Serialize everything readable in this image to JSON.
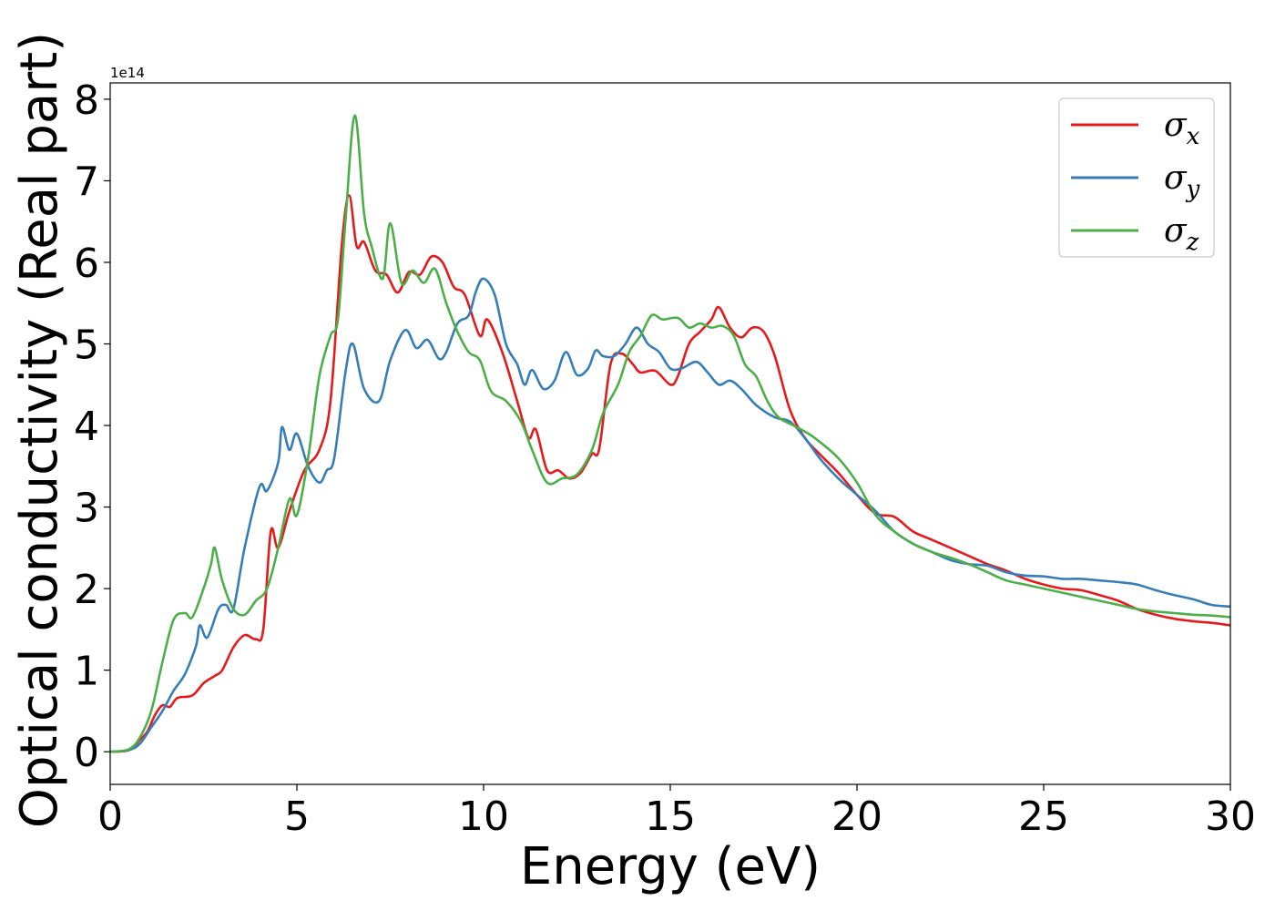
{
  "chart_data": {
    "type": "line",
    "xlabel": "Energy (eV)",
    "ylabel": "Optical conductivity (Real part)",
    "y_scale_label": "1e14",
    "y_scale": 100000000000000.0,
    "xlim": [
      0,
      30
    ],
    "ylim": [
      -0.4,
      8.2
    ],
    "x_ticks": [
      0,
      5,
      10,
      15,
      20,
      25,
      30
    ],
    "y_ticks": [
      0,
      1,
      2,
      3,
      4,
      5,
      6,
      7,
      8
    ],
    "grid": false,
    "legend_position": "top-right",
    "series": [
      {
        "name": "σ_x",
        "label_base": "σ",
        "label_sub": "x",
        "color": "#e41a1c",
        "points": [
          [
            0,
            0
          ],
          [
            0.5,
            0.02
          ],
          [
            0.8,
            0.15
          ],
          [
            1.0,
            0.25
          ],
          [
            1.2,
            0.45
          ],
          [
            1.4,
            0.57
          ],
          [
            1.6,
            0.55
          ],
          [
            1.8,
            0.66
          ],
          [
            2.2,
            0.69
          ],
          [
            2.5,
            0.84
          ],
          [
            2.8,
            0.93
          ],
          [
            3.0,
            1.0
          ],
          [
            3.3,
            1.28
          ],
          [
            3.6,
            1.43
          ],
          [
            3.9,
            1.38
          ],
          [
            4.1,
            1.5
          ],
          [
            4.3,
            2.7
          ],
          [
            4.5,
            2.5
          ],
          [
            4.8,
            2.95
          ],
          [
            5.2,
            3.45
          ],
          [
            5.6,
            3.7
          ],
          [
            5.9,
            4.3
          ],
          [
            6.2,
            6.2
          ],
          [
            6.4,
            6.82
          ],
          [
            6.6,
            6.2
          ],
          [
            6.8,
            6.25
          ],
          [
            7.1,
            5.9
          ],
          [
            7.4,
            5.85
          ],
          [
            7.7,
            5.63
          ],
          [
            8.0,
            5.88
          ],
          [
            8.3,
            5.85
          ],
          [
            8.6,
            6.07
          ],
          [
            8.9,
            6.0
          ],
          [
            9.2,
            5.7
          ],
          [
            9.5,
            5.6
          ],
          [
            9.9,
            5.1
          ],
          [
            10.1,
            5.3
          ],
          [
            10.5,
            4.9
          ],
          [
            10.9,
            4.3
          ],
          [
            11.2,
            3.85
          ],
          [
            11.4,
            3.95
          ],
          [
            11.7,
            3.45
          ],
          [
            12.0,
            3.45
          ],
          [
            12.3,
            3.35
          ],
          [
            12.6,
            3.42
          ],
          [
            12.9,
            3.65
          ],
          [
            13.1,
            3.72
          ],
          [
            13.4,
            4.75
          ],
          [
            13.7,
            4.88
          ],
          [
            14.0,
            4.75
          ],
          [
            14.2,
            4.65
          ],
          [
            14.6,
            4.67
          ],
          [
            15.0,
            4.5
          ],
          [
            15.2,
            4.6
          ],
          [
            15.5,
            5.0
          ],
          [
            15.8,
            5.15
          ],
          [
            16.1,
            5.3
          ],
          [
            16.3,
            5.45
          ],
          [
            16.6,
            5.2
          ],
          [
            16.9,
            5.08
          ],
          [
            17.2,
            5.2
          ],
          [
            17.5,
            5.15
          ],
          [
            17.8,
            4.85
          ],
          [
            18.2,
            4.2
          ],
          [
            18.6,
            3.85
          ],
          [
            19.0,
            3.65
          ],
          [
            19.5,
            3.42
          ],
          [
            20.0,
            3.15
          ],
          [
            20.5,
            2.92
          ],
          [
            21.0,
            2.88
          ],
          [
            21.5,
            2.7
          ],
          [
            22.0,
            2.6
          ],
          [
            22.5,
            2.5
          ],
          [
            23.0,
            2.4
          ],
          [
            23.5,
            2.3
          ],
          [
            24.0,
            2.22
          ],
          [
            24.5,
            2.12
          ],
          [
            25.0,
            2.05
          ],
          [
            25.5,
            2.0
          ],
          [
            26.0,
            1.98
          ],
          [
            26.5,
            1.92
          ],
          [
            27.0,
            1.85
          ],
          [
            27.5,
            1.75
          ],
          [
            28.0,
            1.68
          ],
          [
            28.5,
            1.63
          ],
          [
            29.0,
            1.6
          ],
          [
            29.5,
            1.58
          ],
          [
            30,
            1.55
          ]
        ]
      },
      {
        "name": "σ_y",
        "label_base": "σ",
        "label_sub": "y",
        "color": "#377eb8",
        "points": [
          [
            0,
            0
          ],
          [
            0.5,
            0.02
          ],
          [
            0.8,
            0.1
          ],
          [
            1.1,
            0.3
          ],
          [
            1.4,
            0.5
          ],
          [
            1.7,
            0.75
          ],
          [
            2.0,
            0.95
          ],
          [
            2.3,
            1.3
          ],
          [
            2.4,
            1.55
          ],
          [
            2.6,
            1.4
          ],
          [
            2.9,
            1.75
          ],
          [
            3.1,
            1.8
          ],
          [
            3.3,
            1.75
          ],
          [
            3.6,
            2.5
          ],
          [
            4.0,
            3.25
          ],
          [
            4.2,
            3.2
          ],
          [
            4.5,
            3.55
          ],
          [
            4.6,
            3.98
          ],
          [
            4.8,
            3.7
          ],
          [
            5.0,
            3.9
          ],
          [
            5.3,
            3.5
          ],
          [
            5.6,
            3.3
          ],
          [
            5.8,
            3.45
          ],
          [
            6.0,
            3.6
          ],
          [
            6.3,
            4.65
          ],
          [
            6.5,
            5.0
          ],
          [
            6.8,
            4.45
          ],
          [
            7.2,
            4.3
          ],
          [
            7.5,
            4.8
          ],
          [
            7.9,
            5.17
          ],
          [
            8.2,
            4.95
          ],
          [
            8.5,
            5.05
          ],
          [
            8.8,
            4.82
          ],
          [
            9.0,
            4.9
          ],
          [
            9.3,
            5.25
          ],
          [
            9.6,
            5.35
          ],
          [
            9.8,
            5.65
          ],
          [
            10.0,
            5.8
          ],
          [
            10.3,
            5.6
          ],
          [
            10.6,
            5.0
          ],
          [
            10.9,
            4.75
          ],
          [
            11.1,
            4.5
          ],
          [
            11.3,
            4.68
          ],
          [
            11.6,
            4.45
          ],
          [
            11.9,
            4.55
          ],
          [
            12.2,
            4.9
          ],
          [
            12.5,
            4.62
          ],
          [
            12.8,
            4.7
          ],
          [
            13.0,
            4.92
          ],
          [
            13.2,
            4.85
          ],
          [
            13.5,
            4.85
          ],
          [
            13.8,
            5.0
          ],
          [
            14.1,
            5.2
          ],
          [
            14.4,
            5.0
          ],
          [
            14.7,
            4.9
          ],
          [
            15.0,
            4.7
          ],
          [
            15.3,
            4.7
          ],
          [
            15.7,
            4.78
          ],
          [
            16.0,
            4.65
          ],
          [
            16.3,
            4.5
          ],
          [
            16.6,
            4.55
          ],
          [
            16.9,
            4.45
          ],
          [
            17.3,
            4.25
          ],
          [
            17.8,
            4.1
          ],
          [
            18.2,
            4.05
          ],
          [
            18.6,
            3.85
          ],
          [
            19.0,
            3.6
          ],
          [
            19.5,
            3.35
          ],
          [
            20.0,
            3.15
          ],
          [
            20.5,
            2.95
          ],
          [
            21.0,
            2.7
          ],
          [
            21.5,
            2.55
          ],
          [
            22.0,
            2.45
          ],
          [
            22.5,
            2.35
          ],
          [
            23.0,
            2.3
          ],
          [
            23.5,
            2.28
          ],
          [
            24.0,
            2.2
          ],
          [
            24.5,
            2.16
          ],
          [
            25.0,
            2.15
          ],
          [
            25.5,
            2.12
          ],
          [
            26.0,
            2.12
          ],
          [
            26.5,
            2.1
          ],
          [
            27.0,
            2.08
          ],
          [
            27.5,
            2.05
          ],
          [
            28.0,
            1.98
          ],
          [
            28.5,
            1.92
          ],
          [
            29.0,
            1.87
          ],
          [
            29.5,
            1.8
          ],
          [
            30,
            1.78
          ]
        ]
      },
      {
        "name": "σ_z",
        "label_base": "σ",
        "label_sub": "z",
        "color": "#4daf4a",
        "points": [
          [
            0,
            0
          ],
          [
            0.5,
            0.03
          ],
          [
            0.8,
            0.18
          ],
          [
            1.1,
            0.5
          ],
          [
            1.4,
            1.1
          ],
          [
            1.7,
            1.62
          ],
          [
            2.0,
            1.7
          ],
          [
            2.2,
            1.65
          ],
          [
            2.5,
            2.0
          ],
          [
            2.7,
            2.3
          ],
          [
            2.8,
            2.5
          ],
          [
            3.0,
            2.1
          ],
          [
            3.3,
            1.75
          ],
          [
            3.6,
            1.68
          ],
          [
            3.9,
            1.85
          ],
          [
            4.2,
            2.0
          ],
          [
            4.5,
            2.5
          ],
          [
            4.8,
            3.1
          ],
          [
            5.0,
            2.9
          ],
          [
            5.3,
            3.6
          ],
          [
            5.6,
            4.6
          ],
          [
            5.9,
            5.1
          ],
          [
            6.1,
            5.3
          ],
          [
            6.3,
            6.5
          ],
          [
            6.55,
            7.8
          ],
          [
            6.8,
            6.6
          ],
          [
            7.0,
            6.2
          ],
          [
            7.3,
            5.8
          ],
          [
            7.5,
            6.48
          ],
          [
            7.8,
            5.75
          ],
          [
            8.1,
            5.9
          ],
          [
            8.4,
            5.75
          ],
          [
            8.7,
            5.92
          ],
          [
            9.0,
            5.5
          ],
          [
            9.3,
            5.15
          ],
          [
            9.6,
            4.9
          ],
          [
            9.9,
            4.8
          ],
          [
            10.2,
            4.42
          ],
          [
            10.6,
            4.3
          ],
          [
            11.0,
            4.05
          ],
          [
            11.3,
            3.7
          ],
          [
            11.7,
            3.3
          ],
          [
            12.1,
            3.35
          ],
          [
            12.5,
            3.4
          ],
          [
            12.9,
            3.7
          ],
          [
            13.2,
            4.15
          ],
          [
            13.6,
            4.5
          ],
          [
            13.9,
            4.9
          ],
          [
            14.2,
            5.1
          ],
          [
            14.5,
            5.35
          ],
          [
            14.8,
            5.3
          ],
          [
            15.2,
            5.32
          ],
          [
            15.5,
            5.2
          ],
          [
            15.8,
            5.25
          ],
          [
            16.1,
            5.2
          ],
          [
            16.4,
            5.22
          ],
          [
            16.7,
            5.1
          ],
          [
            17.0,
            4.75
          ],
          [
            17.3,
            4.6
          ],
          [
            17.6,
            4.3
          ],
          [
            17.9,
            4.1
          ],
          [
            18.3,
            4.0
          ],
          [
            18.7,
            3.9
          ],
          [
            19.0,
            3.8
          ],
          [
            19.5,
            3.6
          ],
          [
            20.0,
            3.3
          ],
          [
            20.5,
            2.9
          ],
          [
            21.0,
            2.7
          ],
          [
            21.5,
            2.55
          ],
          [
            22.0,
            2.45
          ],
          [
            22.5,
            2.38
          ],
          [
            23.0,
            2.3
          ],
          [
            23.5,
            2.2
          ],
          [
            24.0,
            2.1
          ],
          [
            24.5,
            2.05
          ],
          [
            25.0,
            2.0
          ],
          [
            25.5,
            1.95
          ],
          [
            26.0,
            1.9
          ],
          [
            26.5,
            1.85
          ],
          [
            27.0,
            1.8
          ],
          [
            27.5,
            1.75
          ],
          [
            28.0,
            1.72
          ],
          [
            28.5,
            1.7
          ],
          [
            29.0,
            1.68
          ],
          [
            29.5,
            1.67
          ],
          [
            30,
            1.65
          ]
        ]
      }
    ]
  }
}
